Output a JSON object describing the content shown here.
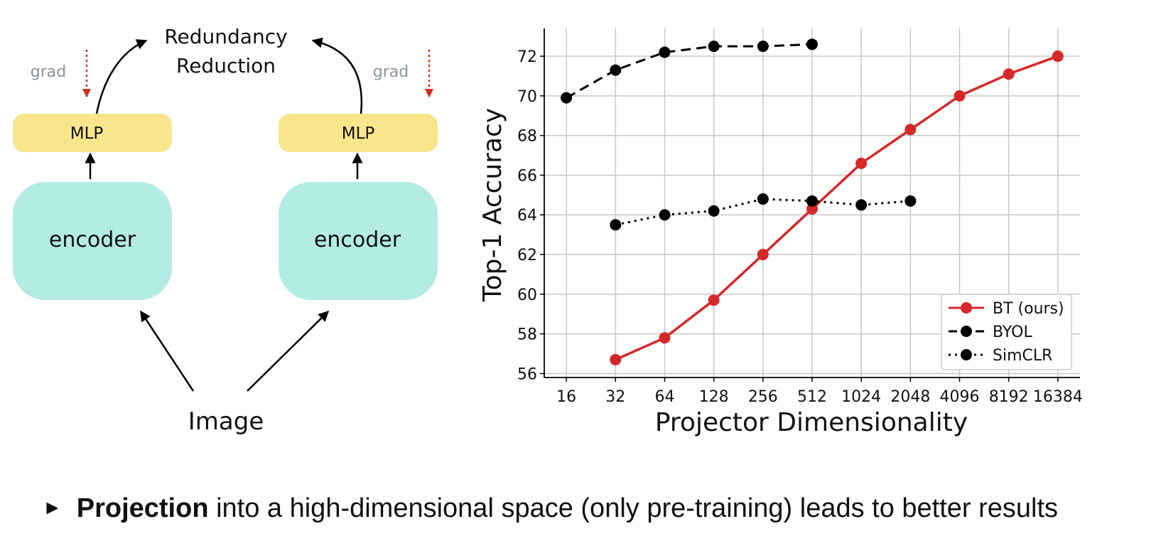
{
  "diagram": {
    "top_label_line1": "Redundancy",
    "top_label_line2": "Reduction",
    "left_grad": "grad",
    "right_grad": "grad",
    "left_mlp": "MLP",
    "right_mlp": "MLP",
    "left_encoder": "encoder",
    "right_encoder": "encoder",
    "input_label": "Image"
  },
  "colors": {
    "mlp_fill": "#f8e58c",
    "encoder_fill": "#b3ebe5",
    "grad_arrow": "#d62d20",
    "bt_series": "#d62728",
    "baseline_series": "#000000"
  },
  "chart_data": {
    "type": "line",
    "title": "",
    "xlabel": "Projector Dimensionality",
    "ylabel": "Top-1 Accuracy",
    "x_scale": "log2",
    "x_ticks": [
      16,
      32,
      64,
      128,
      256,
      512,
      1024,
      2048,
      4096,
      8192,
      16384
    ],
    "x_tick_labels": [
      "16",
      "32",
      "64",
      "128",
      "256",
      "512",
      "1024",
      "2048",
      "4096",
      "8192",
      "16384"
    ],
    "ylim": [
      56,
      73.4
    ],
    "y_ticks": [
      56,
      58,
      60,
      62,
      64,
      66,
      68,
      70,
      72
    ],
    "grid": true,
    "legend_position": "bottom-right",
    "series": [
      {
        "name": "BT (ours)",
        "style": "solid",
        "color": "#d62728",
        "x": [
          32,
          64,
          128,
          256,
          512,
          1024,
          2048,
          4096,
          8192,
          16384
        ],
        "y": [
          56.7,
          57.8,
          59.7,
          62.0,
          64.3,
          66.6,
          68.3,
          70.0,
          71.1,
          72.0
        ]
      },
      {
        "name": "BYOL",
        "style": "dashed",
        "color": "#000000",
        "x": [
          16,
          32,
          64,
          128,
          256,
          512
        ],
        "y": [
          69.9,
          71.3,
          72.2,
          72.5,
          72.5,
          72.6
        ]
      },
      {
        "name": "SimCLR",
        "style": "dotted",
        "color": "#000000",
        "x": [
          32,
          64,
          128,
          256,
          512,
          1024,
          2048
        ],
        "y": [
          63.5,
          64.0,
          64.2,
          64.8,
          64.7,
          64.5,
          64.7
        ]
      }
    ]
  },
  "bullet": {
    "marker": "►",
    "bold_text": "Projection",
    "rest_text": " into a high-dimensional space (only pre-training) leads to better results"
  }
}
